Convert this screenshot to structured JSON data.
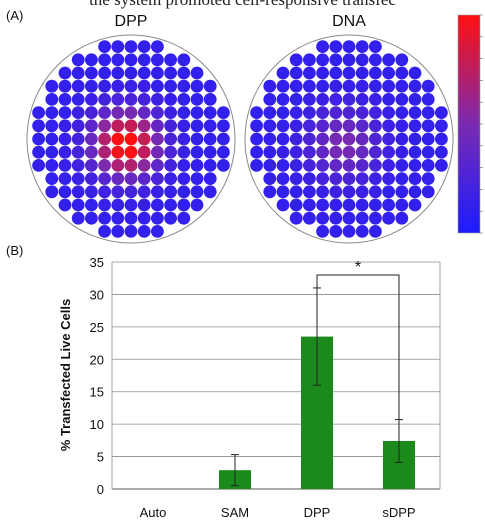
{
  "header_text": "the system promoted cell-responsive transfec",
  "panel_a": {
    "label": "(A)",
    "maps": [
      {
        "title": "DPP",
        "type": "heatmap"
      },
      {
        "title": "DNA",
        "type": "heatmap"
      }
    ],
    "colorscale": {
      "low": "#1c1cff",
      "mid": "#7a2bb0",
      "high": "#ff1010"
    }
  },
  "panel_b": {
    "label": "(B)"
  },
  "chart_data": {
    "type": "bar",
    "categories": [
      "Auto",
      "SAM",
      "DPP",
      "sDPP"
    ],
    "values": [
      0,
      2.9,
      23.5,
      7.4
    ],
    "errors": [
      0,
      2.4,
      7.5,
      3.3
    ],
    "title": "",
    "xlabel": "",
    "ylabel": "% Transfected Live Cells",
    "ylim": [
      0,
      35
    ],
    "yticks": [
      "0",
      "5",
      "10",
      "15",
      "20",
      "25",
      "30",
      "35"
    ],
    "grid": true,
    "bar_color": "#1a8a1a",
    "significance": {
      "from": "DPP",
      "to": "sDPP",
      "label": "*"
    }
  }
}
